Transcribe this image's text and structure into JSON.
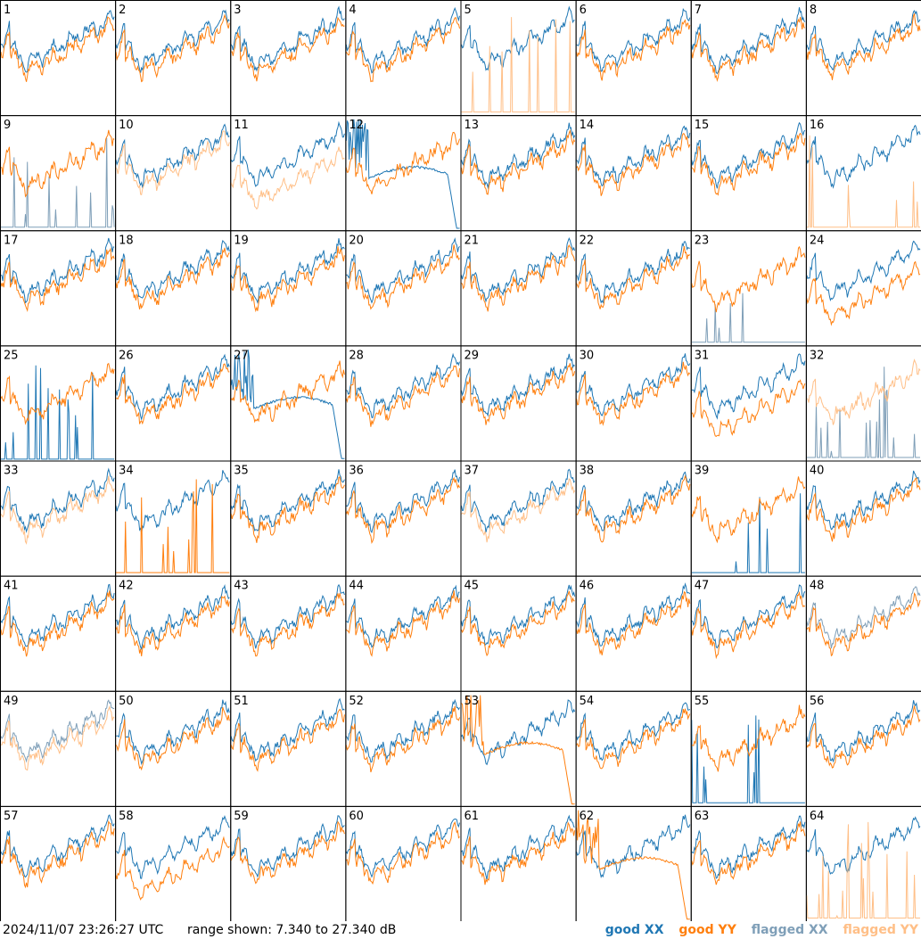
{
  "footer": {
    "timestamp": "2024/11/07 23:26:27 UTC",
    "range": "range shown: 7.340 to 27.340 dB"
  },
  "legend": {
    "good_xx": "good XX",
    "good_yy": "good YY",
    "flagged_xx": "flagged XX",
    "flagged_yy": "flagged YY"
  },
  "colors": {
    "good_xx": "#1f77b4",
    "good_yy": "#ff7f0e",
    "flagged_xx": "#7f9fb8",
    "flagged_yy": "#ffbf87"
  },
  "chart_data": {
    "type": "line",
    "panel_count": 64,
    "grid": "8x8",
    "y_range_db": [
      7.34,
      27.34
    ],
    "panels": [
      {
        "label": "1",
        "xx": "good",
        "yy": "good",
        "shape": "normal"
      },
      {
        "label": "2",
        "xx": "good",
        "yy": "good",
        "shape": "normal"
      },
      {
        "label": "3",
        "xx": "good",
        "yy": "good",
        "shape": "normal"
      },
      {
        "label": "4",
        "xx": "good",
        "yy": "good",
        "shape": "normal"
      },
      {
        "label": "5",
        "xx": "good",
        "yy": "flagged",
        "shape": "yy_spikes"
      },
      {
        "label": "6",
        "xx": "good",
        "yy": "good",
        "shape": "normal"
      },
      {
        "label": "7",
        "xx": "good",
        "yy": "good",
        "shape": "normal"
      },
      {
        "label": "8",
        "xx": "good",
        "yy": "good",
        "shape": "normal"
      },
      {
        "label": "9",
        "xx": "flagged",
        "yy": "good",
        "shape": "xx_spikes"
      },
      {
        "label": "10",
        "xx": "good",
        "yy": "flagged",
        "shape": "normal"
      },
      {
        "label": "11",
        "xx": "good",
        "yy": "flagged",
        "shape": "low_yy"
      },
      {
        "label": "12",
        "xx": "good",
        "yy": "good",
        "shape": "xx_dropoff"
      },
      {
        "label": "13",
        "xx": "good",
        "yy": "good",
        "shape": "normal"
      },
      {
        "label": "14",
        "xx": "good",
        "yy": "good",
        "shape": "normal"
      },
      {
        "label": "15",
        "xx": "good",
        "yy": "good",
        "shape": "normal"
      },
      {
        "label": "16",
        "xx": "good",
        "yy": "flagged",
        "shape": "yy_spikes"
      },
      {
        "label": "17",
        "xx": "good",
        "yy": "good",
        "shape": "normal"
      },
      {
        "label": "18",
        "xx": "good",
        "yy": "good",
        "shape": "normal"
      },
      {
        "label": "19",
        "xx": "good",
        "yy": "good",
        "shape": "normal"
      },
      {
        "label": "20",
        "xx": "good",
        "yy": "good",
        "shape": "normal"
      },
      {
        "label": "21",
        "xx": "good",
        "yy": "good",
        "shape": "normal"
      },
      {
        "label": "22",
        "xx": "good",
        "yy": "good",
        "shape": "normal"
      },
      {
        "label": "23",
        "xx": "flagged",
        "yy": "good",
        "shape": "xx_spikes"
      },
      {
        "label": "24",
        "xx": "good",
        "yy": "good",
        "shape": "low_yy"
      },
      {
        "label": "25",
        "xx": "good",
        "yy": "good",
        "shape": "xx_flat"
      },
      {
        "label": "26",
        "xx": "good",
        "yy": "good",
        "shape": "normal"
      },
      {
        "label": "27",
        "xx": "good",
        "yy": "good",
        "shape": "xx_dropoff"
      },
      {
        "label": "28",
        "xx": "good",
        "yy": "good",
        "shape": "normal"
      },
      {
        "label": "29",
        "xx": "good",
        "yy": "good",
        "shape": "normal"
      },
      {
        "label": "30",
        "xx": "good",
        "yy": "good",
        "shape": "normal"
      },
      {
        "label": "31",
        "xx": "good",
        "yy": "good",
        "shape": "low_yy"
      },
      {
        "label": "32",
        "xx": "flagged",
        "yy": "flagged",
        "shape": "xx_spikes"
      },
      {
        "label": "33",
        "xx": "good",
        "yy": "flagged",
        "shape": "normal"
      },
      {
        "label": "34",
        "xx": "good",
        "yy": "good",
        "shape": "yy_spikes"
      },
      {
        "label": "35",
        "xx": "good",
        "yy": "good",
        "shape": "normal"
      },
      {
        "label": "36",
        "xx": "good",
        "yy": "good",
        "shape": "normal"
      },
      {
        "label": "37",
        "xx": "good",
        "yy": "flagged",
        "shape": "normal"
      },
      {
        "label": "38",
        "xx": "good",
        "yy": "good",
        "shape": "normal"
      },
      {
        "label": "39",
        "xx": "good",
        "yy": "good",
        "shape": "xx_spikes"
      },
      {
        "label": "40",
        "xx": "good",
        "yy": "good",
        "shape": "normal"
      },
      {
        "label": "41",
        "xx": "good",
        "yy": "good",
        "shape": "normal"
      },
      {
        "label": "42",
        "xx": "good",
        "yy": "good",
        "shape": "normal"
      },
      {
        "label": "43",
        "xx": "good",
        "yy": "good",
        "shape": "normal"
      },
      {
        "label": "44",
        "xx": "good",
        "yy": "good",
        "shape": "normal"
      },
      {
        "label": "45",
        "xx": "good",
        "yy": "good",
        "shape": "normal"
      },
      {
        "label": "46",
        "xx": "good",
        "yy": "good",
        "shape": "normal"
      },
      {
        "label": "47",
        "xx": "good",
        "yy": "good",
        "shape": "normal"
      },
      {
        "label": "48",
        "xx": "flagged",
        "yy": "good",
        "shape": "normal"
      },
      {
        "label": "49",
        "xx": "flagged",
        "yy": "flagged",
        "shape": "normal"
      },
      {
        "label": "50",
        "xx": "good",
        "yy": "good",
        "shape": "normal"
      },
      {
        "label": "51",
        "xx": "good",
        "yy": "good",
        "shape": "normal"
      },
      {
        "label": "52",
        "xx": "good",
        "yy": "good",
        "shape": "normal"
      },
      {
        "label": "53",
        "xx": "good",
        "yy": "good",
        "shape": "yy_dropoff"
      },
      {
        "label": "54",
        "xx": "good",
        "yy": "good",
        "shape": "normal"
      },
      {
        "label": "55",
        "xx": "good",
        "yy": "good",
        "shape": "xx_spikes"
      },
      {
        "label": "56",
        "xx": "good",
        "yy": "good",
        "shape": "normal"
      },
      {
        "label": "57",
        "xx": "good",
        "yy": "good",
        "shape": "normal"
      },
      {
        "label": "58",
        "xx": "good",
        "yy": "good",
        "shape": "low_yy"
      },
      {
        "label": "59",
        "xx": "good",
        "yy": "good",
        "shape": "normal"
      },
      {
        "label": "60",
        "xx": "good",
        "yy": "good",
        "shape": "normal"
      },
      {
        "label": "61",
        "xx": "good",
        "yy": "good",
        "shape": "normal"
      },
      {
        "label": "62",
        "xx": "good",
        "yy": "good",
        "shape": "yy_dropoff"
      },
      {
        "label": "63",
        "xx": "good",
        "yy": "good",
        "shape": "normal"
      },
      {
        "label": "64",
        "xx": "good",
        "yy": "flagged",
        "shape": "yy_spikes"
      }
    ]
  }
}
